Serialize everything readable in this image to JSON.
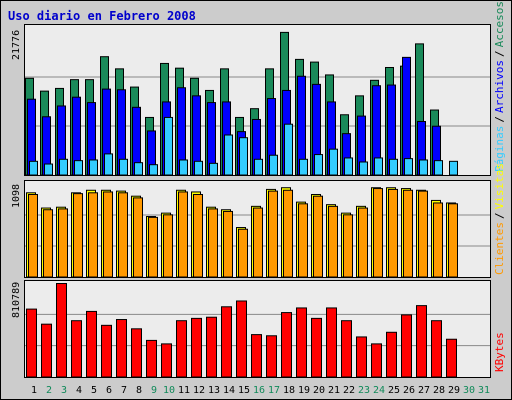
{
  "title": "Uso diario en Febrero 2008",
  "colors": {
    "frame_bg": "#cccccc",
    "panel_bg": "#ececec",
    "title": "#0000cc",
    "accesos": "#1a8a5a",
    "archivos": "#0000ff",
    "paginas": "#33ccff",
    "clientes": "#ff9900",
    "visitas": "#ffff00",
    "kbytes": "#ff0000",
    "weekend_day": "#118a5a",
    "weekday_day": "#000000",
    "gridline": "#888888"
  },
  "labels": {
    "accesos": "Accesos",
    "archivos": "Archivos",
    "paginas": "Páginas",
    "visitas": "Visitas",
    "clientes": "Clientes",
    "kbytes": "KBytes",
    "sep": "/"
  },
  "chart_data": [
    {
      "type": "bar",
      "panel": "top",
      "max_label": "21776",
      "ylim": [
        0,
        21776
      ],
      "categories": [
        "1",
        "2",
        "3",
        "4",
        "5",
        "6",
        "7",
        "8",
        "9",
        "10",
        "11",
        "12",
        "13",
        "14",
        "15",
        "16",
        "17",
        "18",
        "19",
        "20",
        "21",
        "22",
        "23",
        "24",
        "25",
        "26",
        "27",
        "28",
        "29",
        "30",
        "31"
      ],
      "series": [
        {
          "name": "Accesos",
          "values": [
            14400,
            12500,
            12900,
            14200,
            14200,
            17600,
            15800,
            13100,
            8600,
            16600,
            15900,
            14400,
            12600,
            15800,
            8600,
            9900,
            15800,
            21200,
            17200,
            16800,
            14900,
            9000,
            11800,
            14100,
            16000,
            16200,
            19500,
            9700,
            0,
            null,
            null
          ]
        },
        {
          "name": "Archivos",
          "values": [
            11300,
            8700,
            10300,
            11600,
            10800,
            12800,
            12700,
            10100,
            6600,
            10900,
            13000,
            11800,
            10800,
            10900,
            6500,
            8300,
            11400,
            12600,
            14700,
            13500,
            10900,
            6200,
            8800,
            13300,
            13400,
            17500,
            8000,
            7300,
            0,
            null,
            null
          ]
        },
        {
          "name": "Páginas",
          "values": [
            2100,
            1700,
            2400,
            2200,
            2300,
            3200,
            2400,
            1900,
            1600,
            8600,
            2300,
            2100,
            1800,
            6000,
            5600,
            2400,
            3000,
            7600,
            2400,
            3100,
            3900,
            2600,
            2000,
            2600,
            2400,
            2500,
            2300,
            2200,
            2100,
            null,
            null
          ]
        }
      ]
    },
    {
      "type": "bar",
      "panel": "middle",
      "max_label": "1098",
      "ylim": [
        0,
        1098
      ],
      "categories": [
        "1",
        "2",
        "3",
        "4",
        "5",
        "6",
        "7",
        "8",
        "9",
        "10",
        "11",
        "12",
        "13",
        "14",
        "15",
        "16",
        "17",
        "18",
        "19",
        "20",
        "21",
        "22",
        "23",
        "24",
        "25",
        "26",
        "27",
        "28",
        "29",
        "30",
        "31"
      ],
      "series": [
        {
          "name": "Visitas",
          "values": [
            1000,
            820,
            830,
            1000,
            1030,
            1030,
            1020,
            960,
            720,
            760,
            1030,
            1010,
            830,
            800,
            590,
            840,
            1040,
            1060,
            890,
            980,
            860,
            760,
            840,
            1060,
            1060,
            1050,
            1030,
            910,
            880,
            null,
            null
          ]
        },
        {
          "name": "Clientes",
          "values": [
            980,
            800,
            810,
            990,
            1000,
            1010,
            1000,
            940,
            710,
            740,
            1010,
            980,
            810,
            780,
            570,
            820,
            1020,
            1030,
            870,
            960,
            840,
            740,
            820,
            1050,
            1040,
            1030,
            1020,
            880,
            870,
            null,
            null
          ]
        }
      ]
    },
    {
      "type": "bar",
      "panel": "bottom",
      "max_label": "810789",
      "ylim": [
        0,
        810789
      ],
      "categories": [
        "1",
        "2",
        "3",
        "4",
        "5",
        "6",
        "7",
        "8",
        "9",
        "10",
        "11",
        "12",
        "13",
        "14",
        "15",
        "16",
        "17",
        "18",
        "19",
        "20",
        "21",
        "22",
        "23",
        "24",
        "25",
        "26",
        "27",
        "28",
        "29",
        "30",
        "31"
      ],
      "series": [
        {
          "name": "KBytes",
          "values": [
            590000,
            460000,
            810789,
            490000,
            570000,
            450000,
            500000,
            420000,
            320000,
            290000,
            490000,
            510000,
            520000,
            610000,
            660000,
            370000,
            360000,
            560000,
            600000,
            510000,
            600000,
            490000,
            350000,
            290000,
            390000,
            540000,
            620000,
            490000,
            330000,
            null,
            null
          ]
        }
      ]
    }
  ]
}
